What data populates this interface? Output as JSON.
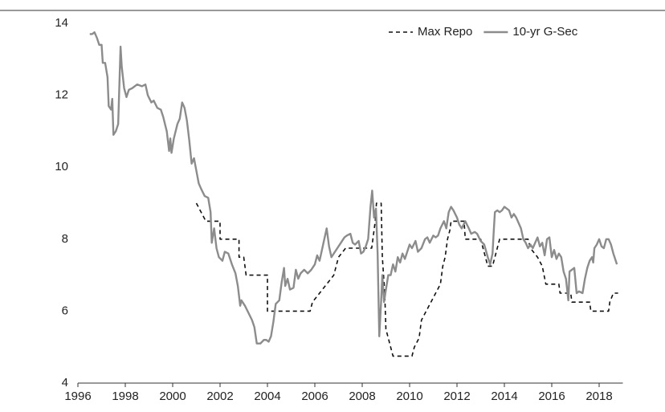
{
  "chart_data": {
    "type": "line",
    "xlim": [
      1996,
      2019
    ],
    "xticks": [
      1996,
      1998,
      2000,
      2002,
      2004,
      2006,
      2008,
      2010,
      2012,
      2014,
      2016,
      2018
    ],
    "ylim": [
      4,
      14
    ],
    "yticks": [
      4,
      6,
      8,
      10,
      12,
      14
    ],
    "legend": "upper right",
    "series": [
      {
        "name": "Max Repo",
        "color": "#111111",
        "dash": true,
        "x": [
          2001.0,
          2001.4,
          2002.0,
          2002.0,
          2002.8,
          2002.8,
          2003.0,
          2003.1,
          2004.0,
          2004.0,
          2005.8,
          2005.9,
          2006.2,
          2006.5,
          2006.8,
          2007.0,
          2007.3,
          2008.4,
          2008.45,
          2008.55,
          2008.6,
          2008.8,
          2008.85,
          2008.95,
          2009.0,
          2009.2,
          2009.3,
          2010.1,
          2010.2,
          2010.4,
          2010.5,
          2010.7,
          2010.9,
          2011.1,
          2011.3,
          2011.4,
          2011.5,
          2011.6,
          2011.7,
          2011.75,
          2012.3,
          2012.35,
          2013.0,
          2013.1,
          2013.3,
          2013.5,
          2013.6,
          2013.7,
          2013.8,
          2015.0,
          2015.1,
          2015.4,
          2015.6,
          2015.75,
          2016.3,
          2016.35,
          2016.8,
          2016.85,
          2017.6,
          2017.65,
          2018.4,
          2018.45,
          2018.6,
          2018.8
        ],
        "values": [
          9.0,
          8.5,
          8.5,
          8.0,
          8.0,
          7.5,
          7.5,
          7.0,
          7.0,
          6.0,
          6.0,
          6.25,
          6.5,
          6.75,
          7.0,
          7.5,
          7.75,
          7.75,
          8.0,
          8.5,
          9.0,
          9.0,
          7.5,
          6.5,
          5.5,
          5.0,
          4.75,
          4.75,
          5.0,
          5.25,
          5.75,
          6.0,
          6.25,
          6.5,
          6.75,
          7.25,
          7.5,
          8.0,
          8.25,
          8.5,
          8.5,
          8.0,
          8.0,
          7.75,
          7.25,
          7.25,
          7.5,
          7.75,
          8.0,
          8.0,
          7.75,
          7.5,
          7.25,
          6.75,
          6.75,
          6.5,
          6.5,
          6.25,
          6.25,
          6.0,
          6.0,
          6.25,
          6.5,
          6.5
        ]
      },
      {
        "name": "10-yr G-Sec",
        "color": "#8c8c8c",
        "dash": false,
        "x": [
          1996.5,
          1996.6,
          1996.7,
          1996.8,
          1996.9,
          1997.0,
          1997.05,
          1997.15,
          1997.25,
          1997.3,
          1997.4,
          1997.45,
          1997.5,
          1997.6,
          1997.7,
          1997.8,
          1997.85,
          1997.95,
          1998.05,
          1998.15,
          1998.3,
          1998.5,
          1998.7,
          1998.85,
          1998.95,
          1999.1,
          1999.2,
          1999.35,
          1999.5,
          1999.6,
          1999.75,
          1999.85,
          1999.9,
          1999.95,
          2000.05,
          2000.2,
          2000.3,
          2000.4,
          2000.5,
          2000.6,
          2000.7,
          2000.8,
          2000.9,
          2001.0,
          2001.1,
          2001.2,
          2001.35,
          2001.5,
          2001.6,
          2001.65,
          2001.75,
          2001.85,
          2001.95,
          2002.1,
          2002.2,
          2002.35,
          2002.5,
          2002.65,
          2002.75,
          2002.85,
          2002.9,
          2003.05,
          2003.2,
          2003.35,
          2003.45,
          2003.55,
          2003.7,
          2003.85,
          2003.95,
          2004.05,
          2004.15,
          2004.25,
          2004.35,
          2004.5,
          2004.6,
          2004.7,
          2004.75,
          2004.85,
          2004.95,
          2005.1,
          2005.2,
          2005.3,
          2005.4,
          2005.55,
          2005.7,
          2005.85,
          2006.0,
          2006.1,
          2006.2,
          2006.3,
          2006.4,
          2006.5,
          2006.6,
          2006.7,
          2006.8,
          2006.9,
          2007.0,
          2007.1,
          2007.25,
          2007.35,
          2007.5,
          2007.6,
          2007.7,
          2007.85,
          2007.95,
          2008.05,
          2008.15,
          2008.25,
          2008.35,
          2008.42,
          2008.5,
          2008.58,
          2008.65,
          2008.72,
          2008.8,
          2008.85,
          2008.92,
          2009.0,
          2009.1,
          2009.2,
          2009.3,
          2009.4,
          2009.5,
          2009.6,
          2009.7,
          2009.8,
          2009.9,
          2010.0,
          2010.1,
          2010.25,
          2010.35,
          2010.5,
          2010.65,
          2010.75,
          2010.85,
          2011.0,
          2011.1,
          2011.2,
          2011.3,
          2011.45,
          2011.55,
          2011.65,
          2011.75,
          2011.85,
          2012.0,
          2012.1,
          2012.2,
          2012.35,
          2012.5,
          2012.6,
          2012.75,
          2012.85,
          2013.0,
          2013.15,
          2013.3,
          2013.4,
          2013.5,
          2013.55,
          2013.6,
          2013.7,
          2013.8,
          2013.9,
          2014.0,
          2014.1,
          2014.2,
          2014.3,
          2014.4,
          2014.5,
          2014.6,
          2014.7,
          2014.8,
          2014.9,
          2015.0,
          2015.1,
          2015.2,
          2015.3,
          2015.4,
          2015.5,
          2015.6,
          2015.7,
          2015.8,
          2015.9,
          2016.0,
          2016.1,
          2016.2,
          2016.3,
          2016.4,
          2016.5,
          2016.6,
          2016.7,
          2016.75,
          2016.85,
          2016.95,
          2017.05,
          2017.15,
          2017.3,
          2017.4,
          2017.5,
          2017.6,
          2017.7,
          2017.75,
          2017.8,
          2017.9,
          2018.0,
          2018.1,
          2018.2,
          2018.3,
          2018.4,
          2018.5,
          2018.6,
          2018.75
        ],
        "values": [
          13.7,
          13.7,
          13.75,
          13.6,
          13.4,
          13.4,
          12.9,
          12.9,
          12.5,
          11.7,
          11.6,
          11.9,
          10.9,
          11.0,
          11.2,
          13.35,
          12.8,
          12.2,
          11.95,
          12.15,
          12.2,
          12.3,
          12.25,
          12.3,
          12.0,
          11.8,
          11.85,
          11.65,
          11.6,
          11.4,
          11.0,
          10.45,
          10.8,
          10.4,
          10.8,
          11.2,
          11.35,
          11.8,
          11.65,
          11.3,
          10.75,
          10.1,
          10.25,
          9.9,
          9.55,
          9.4,
          9.2,
          9.15,
          8.75,
          7.9,
          8.3,
          7.75,
          7.5,
          7.4,
          7.65,
          7.6,
          7.3,
          7.05,
          6.7,
          6.15,
          6.3,
          6.15,
          5.95,
          5.75,
          5.55,
          5.1,
          5.1,
          5.2,
          5.2,
          5.15,
          5.3,
          5.7,
          6.2,
          6.3,
          6.8,
          7.2,
          6.7,
          6.9,
          6.6,
          6.65,
          7.15,
          6.9,
          7.05,
          7.15,
          7.05,
          7.15,
          7.3,
          7.55,
          7.4,
          7.7,
          8.0,
          8.3,
          7.8,
          7.5,
          7.6,
          7.7,
          7.8,
          7.9,
          8.05,
          8.1,
          8.15,
          7.9,
          7.85,
          7.95,
          7.6,
          7.65,
          7.8,
          8.0,
          8.9,
          9.35,
          8.6,
          8.85,
          7.6,
          5.3,
          6.3,
          7.0,
          6.25,
          6.6,
          7.0,
          7.0,
          7.3,
          7.1,
          7.5,
          7.35,
          7.6,
          7.45,
          7.65,
          7.85,
          7.75,
          7.95,
          7.65,
          7.75,
          8.0,
          8.05,
          7.9,
          8.1,
          8.05,
          8.1,
          8.3,
          8.5,
          8.3,
          8.75,
          8.9,
          8.8,
          8.6,
          8.4,
          8.3,
          8.5,
          8.3,
          8.15,
          8.2,
          8.15,
          7.95,
          7.85,
          7.5,
          7.3,
          7.6,
          8.2,
          8.75,
          8.8,
          8.75,
          8.8,
          8.9,
          8.85,
          8.8,
          8.6,
          8.7,
          8.6,
          8.45,
          8.3,
          8.0,
          7.9,
          7.75,
          7.85,
          7.75,
          7.9,
          8.05,
          7.8,
          7.9,
          7.55,
          8.0,
          8.05,
          7.5,
          7.7,
          7.45,
          7.6,
          7.5,
          7.1,
          6.9,
          6.3,
          7.1,
          7.15,
          7.2,
          6.5,
          6.55,
          6.5,
          6.9,
          7.2,
          7.4,
          7.5,
          7.35,
          7.75,
          7.85,
          8.0,
          7.8,
          7.75,
          8.0,
          8.0,
          7.85,
          7.6,
          7.3
        ]
      }
    ]
  }
}
